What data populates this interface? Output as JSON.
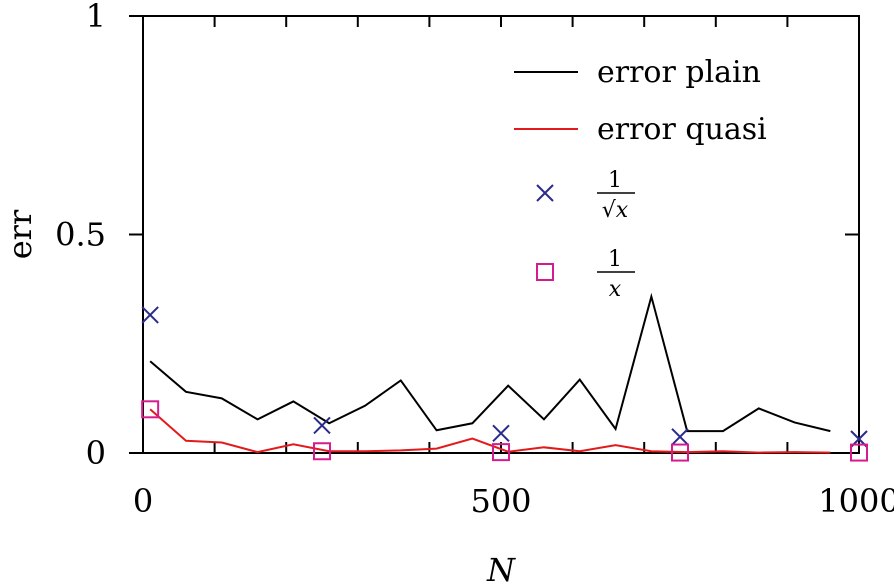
{
  "chart_data": {
    "type": "line",
    "xlabel": "N",
    "ylabel": "err",
    "xlim": [
      0,
      1000
    ],
    "ylim": [
      0,
      1
    ],
    "x_ticks": [
      "0",
      "500",
      "1000"
    ],
    "y_ticks": [
      "0",
      "0.5",
      "1"
    ],
    "grid": false,
    "legend_position": "top-right",
    "series": [
      {
        "name": "error plain",
        "kind": "line",
        "color": "#000000",
        "x": [
          10,
          60,
          110,
          160,
          210,
          260,
          310,
          360,
          410,
          460,
          510,
          560,
          610,
          660,
          710,
          760,
          810,
          860,
          910,
          960
        ],
        "y": [
          0.21,
          0.14,
          0.125,
          0.077,
          0.118,
          0.068,
          0.108,
          0.166,
          0.052,
          0.068,
          0.154,
          0.077,
          0.168,
          0.055,
          0.358,
          0.05,
          0.05,
          0.102,
          0.07,
          0.05
        ]
      },
      {
        "name": "error quasi",
        "kind": "line",
        "color": "#e31a1c",
        "x": [
          10,
          60,
          110,
          160,
          210,
          260,
          310,
          360,
          410,
          460,
          510,
          560,
          610,
          660,
          710,
          760,
          810,
          860,
          910,
          960
        ],
        "y": [
          0.1,
          0.028,
          0.024,
          0.002,
          0.02,
          0.004,
          0.004,
          0.006,
          0.01,
          0.033,
          0.003,
          0.013,
          0.004,
          0.018,
          0.004,
          0.002,
          0.004,
          0.001,
          0.002,
          0.001
        ]
      },
      {
        "name_num": "1",
        "name_den": "√x",
        "kind": "marker-x",
        "color": "#2b2b8c",
        "x": [
          10,
          250,
          500,
          750,
          1000
        ],
        "y": [
          0.316,
          0.063,
          0.045,
          0.037,
          0.032
        ]
      },
      {
        "name_num": "1",
        "name_den": "x",
        "kind": "marker-square",
        "color": "#d61c8c",
        "x": [
          10,
          250,
          500,
          750,
          1000
        ],
        "y": [
          0.1,
          0.004,
          0.002,
          0.001,
          0.001
        ]
      }
    ]
  }
}
